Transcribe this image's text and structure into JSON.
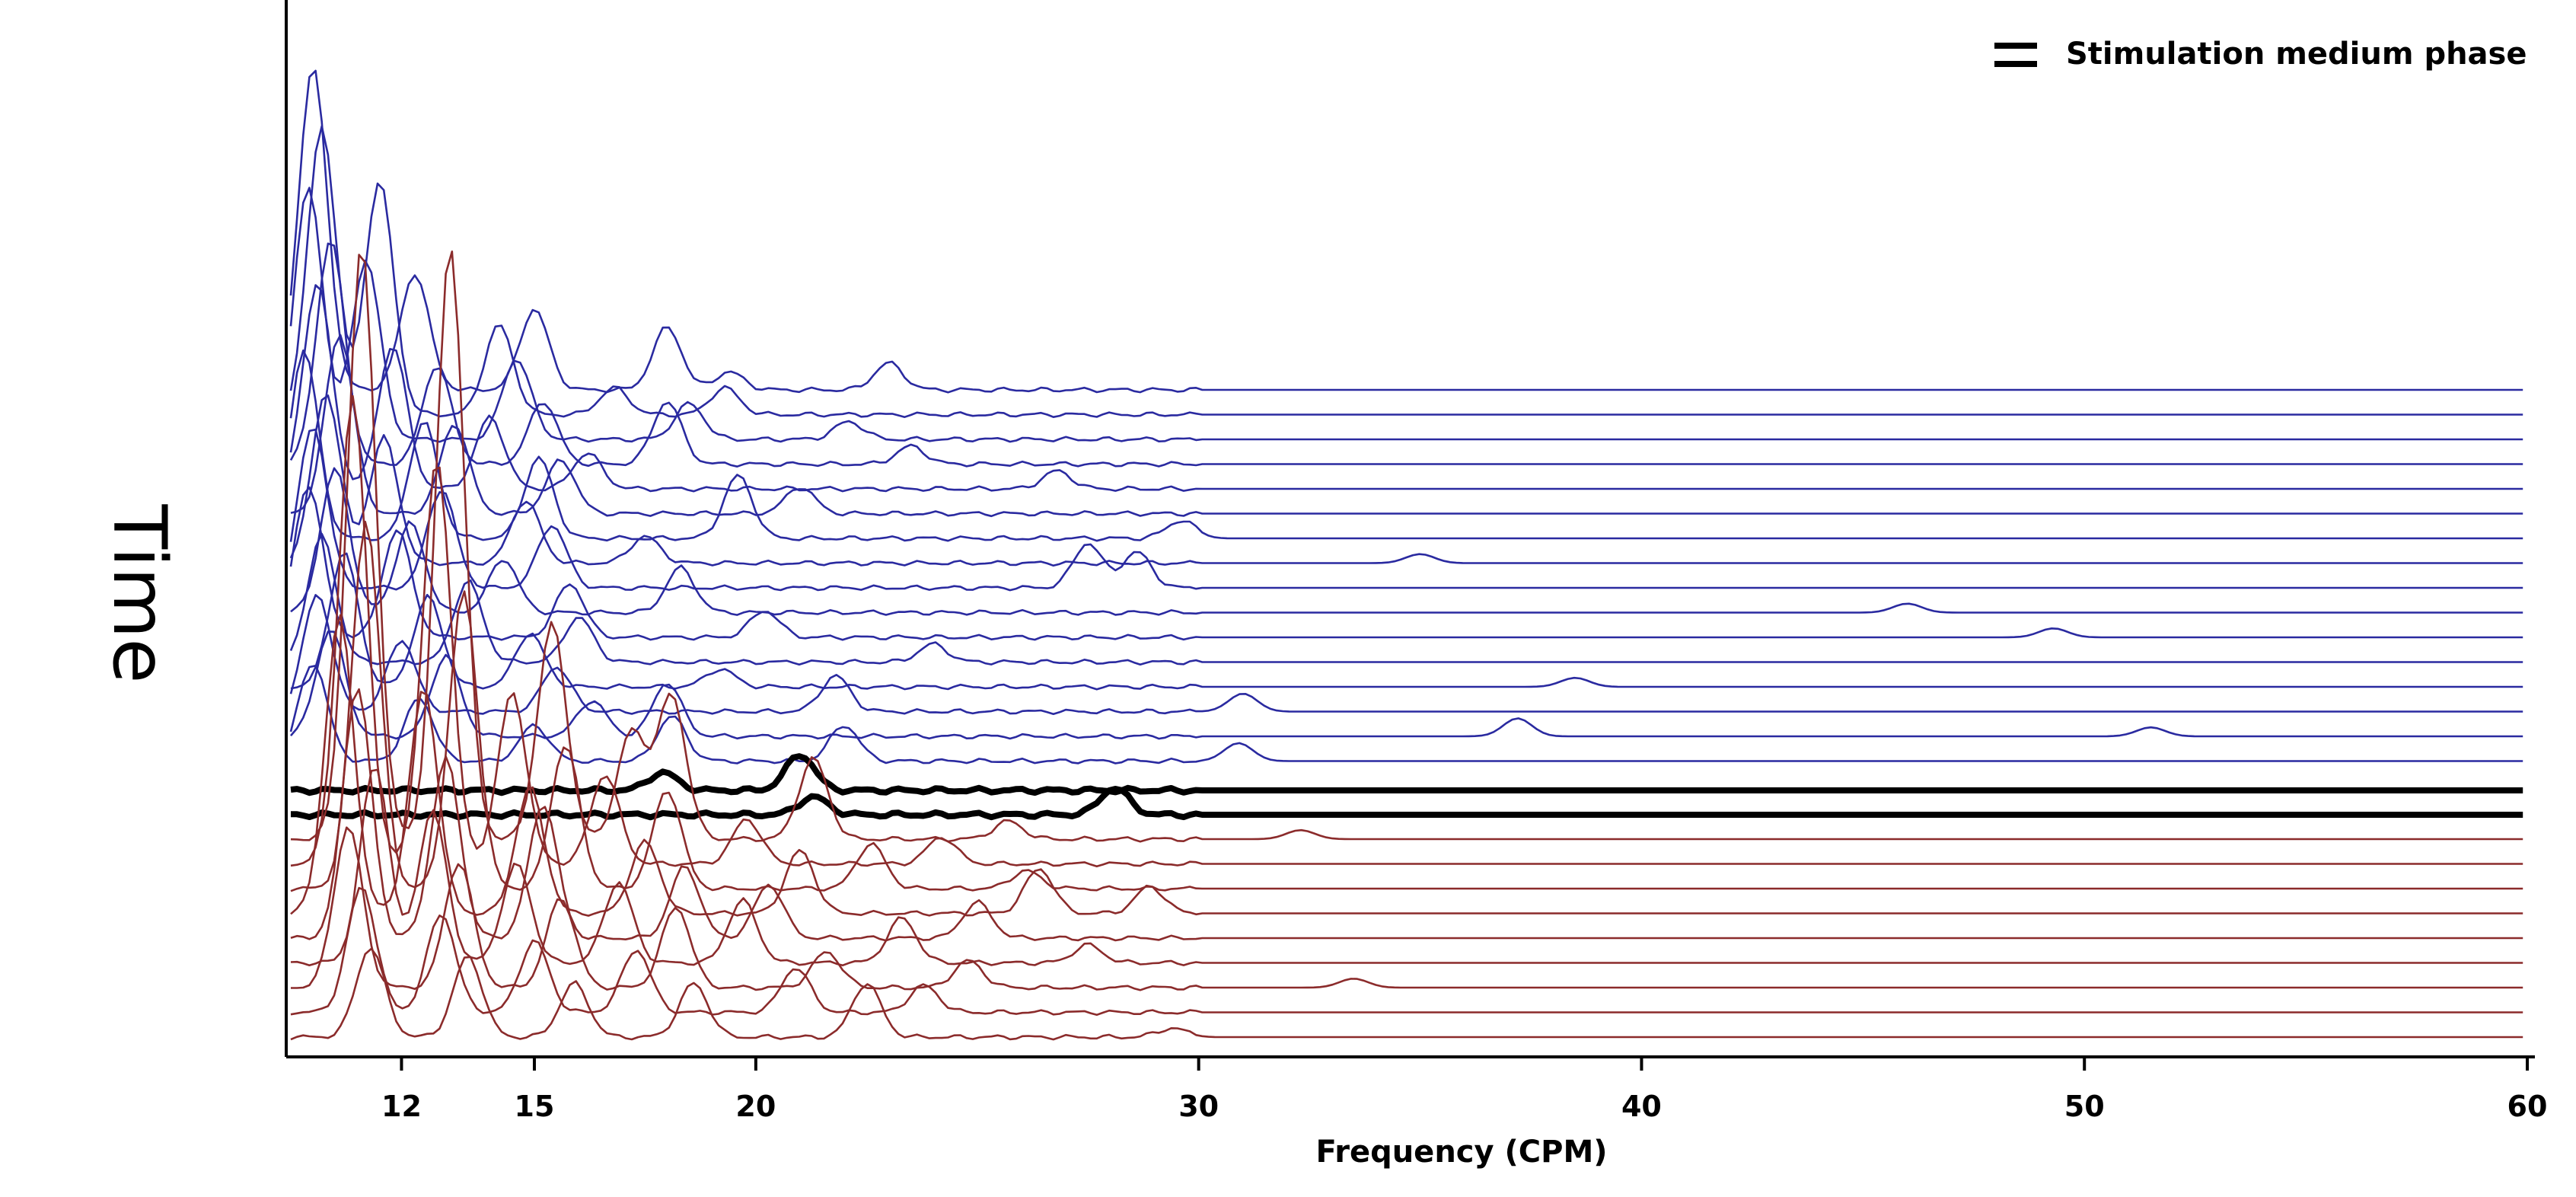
{
  "chart_data": {
    "type": "line",
    "chart_style": "waterfall spectral plot",
    "xlabel": "Frequency (CPM)",
    "ylabel": "Time",
    "xlim": [
      9.5,
      60
    ],
    "x_ticks": [
      12,
      15,
      20,
      30,
      40,
      50,
      60
    ],
    "legend": {
      "label": "Stimulation medium phase",
      "position": "top-right"
    },
    "colors": {
      "upper_traces": "#2a2aa0",
      "stimulation_traces": "#000000",
      "lower_traces": "#8b2b2b",
      "axis": "#000000"
    },
    "groups": [
      {
        "name": "Stimulation medium phase",
        "color": "#000000",
        "trace_count": 2
      }
    ],
    "upper_traces": [
      {
        "peaks": [
          [
            10,
            3.6
          ],
          [
            12.3,
            1.3
          ],
          [
            15,
            0.9
          ],
          [
            18,
            0.7
          ],
          [
            19.4,
            0.2
          ],
          [
            23,
            0.3
          ]
        ]
      },
      {
        "peaks": [
          [
            10.2,
            3.2
          ],
          [
            11.5,
            2.6
          ],
          [
            14.2,
            1.0
          ],
          [
            16.8,
            0.3
          ],
          [
            19.3,
            0.3
          ]
        ]
      },
      {
        "peaks": [
          [
            9.9,
            2.8
          ],
          [
            11.2,
            2.0
          ],
          [
            14.6,
            0.9
          ],
          [
            18.5,
            0.4
          ],
          [
            22.1,
            0.2
          ]
        ]
      },
      {
        "peaks": [
          [
            10.4,
            2.5
          ],
          [
            12.8,
            1.1
          ],
          [
            15.2,
            0.7
          ],
          [
            18.0,
            0.7
          ],
          [
            23.5,
            0.2
          ]
        ]
      },
      {
        "peaks": [
          [
            10.1,
            2.3
          ],
          [
            11.8,
            1.6
          ],
          [
            14.0,
            0.8
          ],
          [
            16.2,
            0.4
          ],
          [
            26.8,
            0.2
          ]
        ]
      },
      {
        "peaks": [
          [
            10.6,
            2.0
          ],
          [
            13.2,
            1.0
          ],
          [
            15.6,
            0.6
          ],
          [
            21.0,
            0.3
          ]
        ]
      },
      {
        "peaks": [
          [
            9.8,
            2.1
          ],
          [
            12.5,
            1.3
          ],
          [
            15.1,
            0.9
          ],
          [
            19.6,
            0.7
          ],
          [
            29.6,
            0.2
          ]
        ]
      },
      {
        "peaks": [
          [
            10.3,
            1.9
          ],
          [
            11.6,
            1.4
          ],
          [
            14.8,
            0.7
          ],
          [
            17.5,
            0.3
          ],
          [
            35.0,
            0.1
          ]
        ]
      },
      {
        "peaks": [
          [
            10.0,
            1.8
          ],
          [
            12.9,
            1.1
          ],
          [
            15.4,
            0.7
          ],
          [
            27.5,
            0.5
          ],
          [
            28.6,
            0.4
          ]
        ]
      },
      {
        "peaks": [
          [
            10.5,
            1.6
          ],
          [
            12.2,
            1.0
          ],
          [
            14.3,
            0.6
          ],
          [
            18.3,
            0.5
          ],
          [
            46.0,
            0.1
          ]
        ]
      },
      {
        "peaks": [
          [
            9.9,
            1.7
          ],
          [
            11.9,
            1.2
          ],
          [
            15.8,
            0.6
          ],
          [
            20.2,
            0.3
          ],
          [
            49.3,
            0.1
          ]
        ]
      },
      {
        "peaks": [
          [
            10.2,
            1.4
          ],
          [
            13.5,
            0.9
          ],
          [
            16.0,
            0.5
          ],
          [
            24.0,
            0.2
          ]
        ]
      },
      {
        "peaks": [
          [
            10.7,
            1.5
          ],
          [
            12.6,
            1.0
          ],
          [
            14.9,
            0.6
          ],
          [
            19.2,
            0.2
          ],
          [
            38.5,
            0.1
          ]
        ]
      },
      {
        "peaks": [
          [
            10.1,
            1.3
          ],
          [
            12.0,
            0.8
          ],
          [
            15.5,
            0.5
          ],
          [
            21.8,
            0.4
          ],
          [
            31.0,
            0.2
          ]
        ]
      },
      {
        "peaks": [
          [
            10.4,
            1.2
          ],
          [
            13.0,
            0.9
          ],
          [
            16.3,
            0.4
          ],
          [
            18.0,
            0.6
          ],
          [
            37.2,
            0.2
          ],
          [
            51.5,
            0.1
          ]
        ]
      },
      {
        "peaks": [
          [
            10.0,
            1.1
          ],
          [
            12.4,
            0.7
          ],
          [
            15.0,
            0.4
          ],
          [
            18.1,
            0.5
          ],
          [
            22.0,
            0.4
          ],
          [
            30.9,
            0.2
          ]
        ]
      }
    ],
    "stimulation_traces": [
      {
        "peaks": [
          [
            21.0,
            0.4
          ],
          [
            17.9,
            0.2
          ]
        ]
      },
      {
        "peaks": [
          [
            28.1,
            0.3
          ],
          [
            21.3,
            0.2
          ]
        ]
      }
    ],
    "lower_traces": [
      {
        "peaks": [
          [
            11.1,
            6.6
          ],
          [
            13.1,
            6.6
          ],
          [
            15.4,
            2.4
          ],
          [
            17.2,
            1.2
          ],
          [
            18.1,
            1.6
          ],
          [
            21.3,
            0.9
          ],
          [
            25.7,
            0.2
          ],
          [
            32.3,
            0.1
          ]
        ]
      },
      {
        "peaks": [
          [
            10.9,
            5.2
          ],
          [
            12.8,
            4.5
          ],
          [
            14.5,
            1.9
          ],
          [
            16.6,
            1.0
          ],
          [
            19.8,
            0.5
          ],
          [
            24.2,
            0.3
          ]
        ]
      },
      {
        "peaks": [
          [
            11.2,
            4.1
          ],
          [
            13.4,
            3.3
          ],
          [
            15.7,
            1.6
          ],
          [
            18.0,
            1.1
          ],
          [
            22.6,
            0.5
          ],
          [
            26.1,
            0.2
          ]
        ]
      },
      {
        "peaks": [
          [
            10.6,
            3.3
          ],
          [
            12.5,
            2.5
          ],
          [
            14.9,
            1.4
          ],
          [
            17.5,
            0.8
          ],
          [
            21.0,
            0.7
          ],
          [
            26.4,
            0.5
          ],
          [
            28.9,
            0.3
          ]
        ]
      },
      {
        "peaks": [
          [
            11.0,
            2.8
          ],
          [
            13.0,
            2.0
          ],
          [
            15.2,
            1.5
          ],
          [
            18.4,
            0.8
          ],
          [
            20.3,
            0.6
          ],
          [
            25.0,
            0.4
          ]
        ]
      },
      {
        "peaks": [
          [
            11.4,
            2.2
          ],
          [
            12.7,
            1.7
          ],
          [
            14.6,
            1.1
          ],
          [
            16.9,
            0.9
          ],
          [
            19.7,
            0.7
          ],
          [
            23.3,
            0.5
          ],
          [
            27.5,
            0.2
          ]
        ]
      },
      {
        "peaks": [
          [
            10.8,
            1.8
          ],
          [
            13.3,
            1.4
          ],
          [
            15.6,
            1.0
          ],
          [
            18.2,
            0.9
          ],
          [
            21.6,
            0.4
          ],
          [
            24.8,
            0.3
          ],
          [
            33.5,
            0.1
          ]
        ]
      },
      {
        "peaks": [
          [
            11.1,
            1.4
          ],
          [
            12.9,
            1.1
          ],
          [
            15.0,
            0.8
          ],
          [
            17.3,
            0.7
          ],
          [
            20.9,
            0.5
          ],
          [
            23.8,
            0.3
          ]
        ]
      },
      {
        "peaks": [
          [
            11.3,
            1.0
          ],
          [
            13.5,
            0.9
          ],
          [
            15.9,
            0.6
          ],
          [
            18.6,
            0.6
          ],
          [
            22.5,
            0.6
          ],
          [
            29.4,
            0.1
          ]
        ]
      }
    ]
  }
}
